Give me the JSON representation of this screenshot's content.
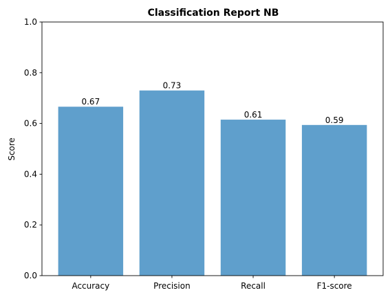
{
  "chart_data": {
    "type": "bar",
    "title": "Classification Report NB",
    "xlabel": "",
    "ylabel": "Score",
    "categories": [
      "Accuracy",
      "Precision",
      "Recall",
      "F1-score"
    ],
    "values": [
      0.666,
      0.73,
      0.615,
      0.594
    ],
    "data_labels": [
      "0.67",
      "0.73",
      "0.61",
      "0.59"
    ],
    "ylim": [
      0,
      1
    ],
    "yticks": [
      0.0,
      0.2,
      0.4,
      0.6,
      0.8,
      1.0
    ],
    "ytick_labels": [
      "0.0",
      "0.2",
      "0.4",
      "0.6",
      "0.8",
      "1.0"
    ],
    "bar_color": "#5f9fcc",
    "grid": false,
    "legend": "none"
  }
}
